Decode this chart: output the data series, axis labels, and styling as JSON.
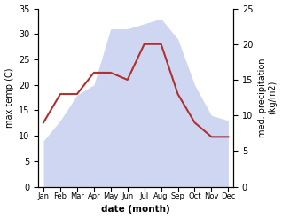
{
  "months": [
    "Jan",
    "Feb",
    "Mar",
    "Apr",
    "May",
    "Jun",
    "Jul",
    "Aug",
    "Sep",
    "Oct",
    "Nov",
    "Dec"
  ],
  "temp": [
    9,
    13,
    18,
    20,
    31,
    31,
    32,
    33,
    29,
    20,
    14,
    13
  ],
  "precip": [
    9,
    13,
    13,
    16,
    16,
    15,
    20,
    20,
    13,
    9,
    7,
    7
  ],
  "temp_color": "#b0bce8",
  "precip_color": "#b03030",
  "left_label": "max temp (C)",
  "right_label": "med. precipitation\n(kg/m2)",
  "xlabel": "date (month)",
  "ylim_left": [
    0,
    35
  ],
  "ylim_right": [
    0,
    25
  ],
  "yticks_left": [
    0,
    5,
    10,
    15,
    20,
    25,
    30,
    35
  ],
  "yticks_right": [
    0,
    5,
    10,
    15,
    20,
    25
  ],
  "background": "#ffffff"
}
